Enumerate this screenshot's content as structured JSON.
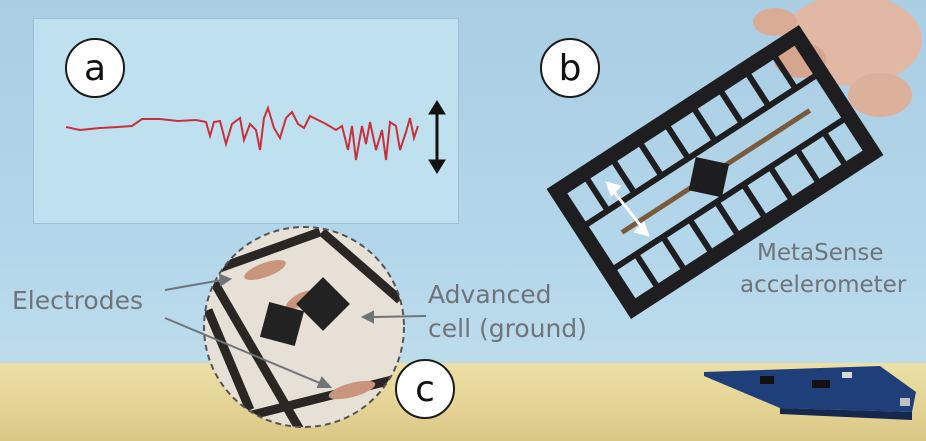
{
  "panel_labels": {
    "a": "a",
    "b": "b",
    "c": "c"
  },
  "annotations": {
    "electrodes": "Electrodes",
    "advanced_cell_line1": "Advanced",
    "advanced_cell_line2": "cell (ground)",
    "metasense_line1": "MetaSense",
    "metasense_line2": "accelerometer"
  },
  "icons": [
    "double-arrow-icon"
  ],
  "colors": {
    "signal": "#c8303c",
    "caption_text": "#6f7479",
    "background": "#b3d6ea"
  }
}
